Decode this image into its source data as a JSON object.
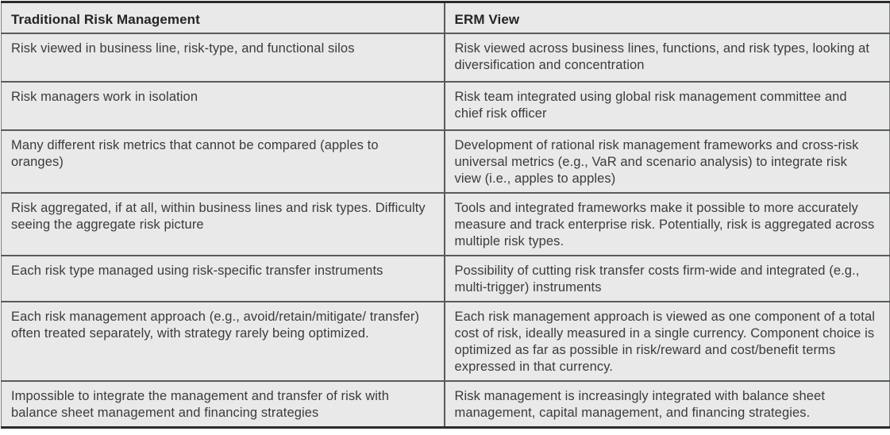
{
  "table": {
    "columns": {
      "traditional_header": "Traditional Risk Management",
      "erm_header": "ERM View"
    },
    "rows": [
      {
        "traditional": "Risk viewed in business line, risk-type, and functional silos",
        "erm": "Risk viewed across business lines, functions, and risk types, looking at diversification and concentration"
      },
      {
        "traditional": "Risk managers work in isolation",
        "erm": "Risk team integrated using global risk management committee and chief risk officer"
      },
      {
        "traditional": "Many different risk metrics that cannot be compared (apples to oranges)",
        "erm": "Development of rational risk management frameworks and cross-risk universal metrics (e.g., VaR and scenario analysis) to integrate risk view (i.e., apples to apples)"
      },
      {
        "traditional": "Risk aggregated, if at all, within business lines and risk types. Difficulty seeing the aggregate risk picture",
        "erm": "Tools and integrated frameworks make it possible to more accurately measure and track enterprise risk. Potentially, risk is aggregated across multiple risk types."
      },
      {
        "traditional": "Each risk type managed using risk-specific transfer instruments",
        "erm": "Possibility of cutting risk transfer costs firm-wide and integrated (e.g., multi-trigger) instruments"
      },
      {
        "traditional": "Each risk management approach (e.g., avoid/retain/mitigate/ transfer) often treated separately, with strategy rarely being optimized.",
        "erm": "Each risk management approach is viewed as one component of a total cost of risk, ideally measured in a single currency. Component choice is optimized as far as possible in risk/reward and cost/benefit terms expressed in that currency."
      },
      {
        "traditional": "Impossible to integrate the management and transfer of risk with balance sheet management and financing strategies",
        "erm": "Risk management is increasingly integrated with balance sheet management, capital management, and financing strategies."
      }
    ],
    "colors": {
      "cell_background": "#e8e9e8",
      "outer_border": "#2a2b2b",
      "row_separator": "#595b5b",
      "body_text": "#3a3c3d",
      "header_text": "#232526"
    }
  }
}
